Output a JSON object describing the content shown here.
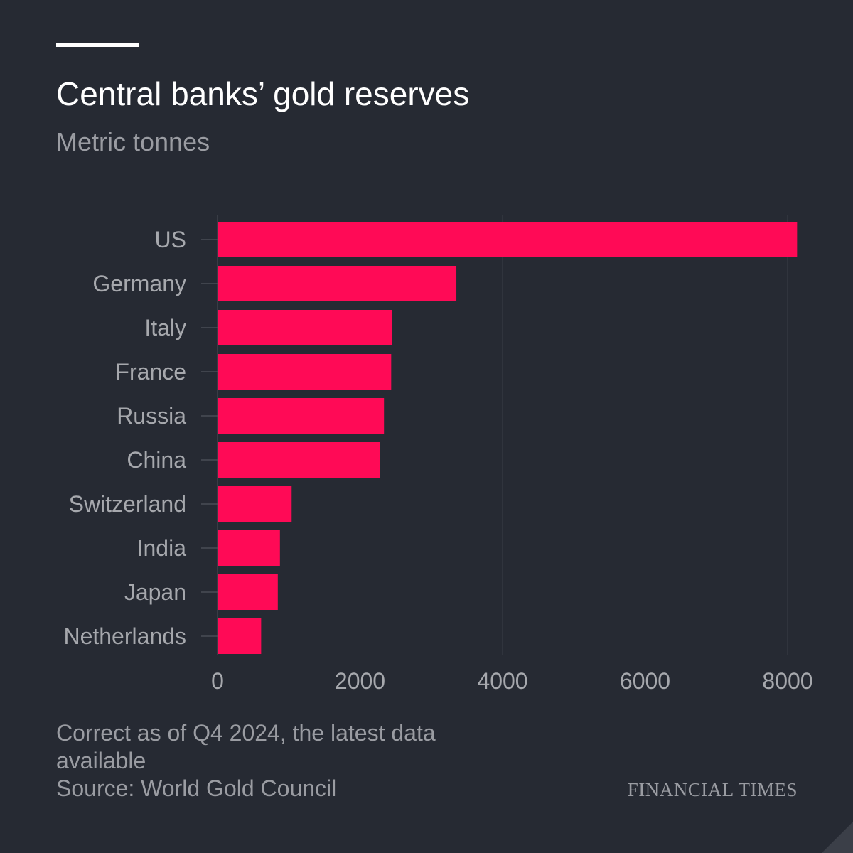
{
  "header": {
    "title": "Central banks’ gold reserves",
    "subtitle": "Metric tonnes"
  },
  "footer": {
    "note": "Correct as of Q4 2024, the latest data available",
    "source": "Source: World Gold Council",
    "brand": "FINANCIAL TIMES"
  },
  "colors": {
    "bar": "#ff0a56",
    "background": "#262a33",
    "grid": "#3a3e47",
    "label": "#a6a8ad"
  },
  "chart_data": {
    "type": "bar",
    "orientation": "horizontal",
    "title": "Central banks’ gold reserves",
    "subtitle": "Metric tonnes",
    "xlabel": "",
    "ylabel": "",
    "categories": [
      "US",
      "Germany",
      "Italy",
      "France",
      "Russia",
      "China",
      "Switzerland",
      "India",
      "Japan",
      "Netherlands"
    ],
    "values": [
      8133,
      3352,
      2452,
      2437,
      2336,
      2280,
      1040,
      876,
      846,
      612
    ],
    "xlim": [
      0,
      8000
    ],
    "xticks": [
      "0",
      "2000",
      "4000",
      "6000",
      "8000"
    ],
    "grid": true,
    "legend": "none"
  }
}
